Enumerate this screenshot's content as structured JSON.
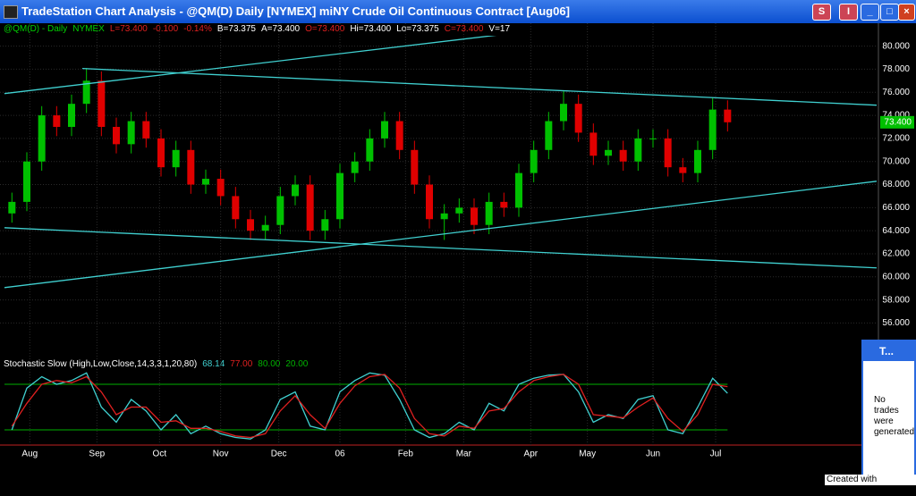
{
  "window": {
    "title": "TradeStation Chart Analysis - @QM(D)  Daily  [NYMEX] miNY Crude Oil Continuous Contract [Aug06]",
    "buttons": [
      "S",
      "I"
    ]
  },
  "side_window": {
    "title": "T...",
    "message": "No trades were generated"
  },
  "footer": "Created with TradeStation",
  "chart_data": [
    {
      "type": "candlestick",
      "header": [
        {
          "text": "@QM(D) - Daily",
          "color": "#00d000"
        },
        {
          "text": "NYMEX",
          "color": "#00d000"
        },
        {
          "text": "L=73.400",
          "color": "#e02020"
        },
        {
          "text": "-0.100",
          "color": "#e02020"
        },
        {
          "text": "-0.14%",
          "color": "#e02020"
        },
        {
          "text": "B=73.375",
          "color": "#ffffff"
        },
        {
          "text": "A=73.400",
          "color": "#ffffff"
        },
        {
          "text": "O=73.400",
          "color": "#e02020"
        },
        {
          "text": "Hi=73.400",
          "color": "#ffffff"
        },
        {
          "text": "Lo=73.375",
          "color": "#ffffff"
        },
        {
          "text": "C=73.400",
          "color": "#e02020"
        },
        {
          "text": "V=17",
          "color": "#ffffff"
        }
      ],
      "open": [
        65.5,
        66.5,
        70,
        74,
        73,
        75,
        77,
        73,
        71.5,
        73.5,
        72,
        69.5,
        71,
        68,
        68.5,
        67,
        65,
        64,
        64.5,
        67,
        68,
        64,
        65,
        69,
        70,
        72,
        73.5,
        71,
        68,
        65,
        65.5,
        66,
        64.5,
        66.5,
        66,
        69,
        71,
        73.5,
        75,
        72.5,
        70.5,
        71,
        70,
        72,
        72,
        69.5,
        69,
        71,
        74.5
      ],
      "high": [
        67.3,
        70.8,
        74.8,
        74.8,
        75.8,
        78.1,
        77.8,
        73.8,
        74.3,
        74.3,
        72.8,
        71.8,
        71.8,
        69.3,
        69.3,
        67.8,
        65.8,
        65.3,
        67.8,
        68.8,
        68.8,
        65.8,
        69.8,
        70.8,
        72.8,
        74.3,
        74.3,
        71.8,
        68.8,
        66.3,
        66.8,
        66.8,
        67.3,
        67.3,
        69.8,
        71.8,
        74.3,
        76.1,
        75.8,
        73.3,
        71.8,
        71.8,
        72.8,
        72.8,
        72.8,
        70.3,
        71.8,
        75.5,
        75.3
      ],
      "low": [
        64.7,
        65.7,
        69.2,
        72.2,
        72.2,
        74.2,
        72.2,
        70.7,
        70.7,
        71.2,
        68.7,
        68.7,
        67.2,
        67.2,
        66.2,
        64.2,
        63.2,
        63.2,
        63.7,
        66.2,
        63.2,
        63.2,
        64.2,
        68.2,
        69.2,
        71.2,
        70.2,
        67.2,
        64.2,
        63.2,
        64.7,
        63.7,
        63.7,
        65.2,
        65.2,
        68.2,
        70.2,
        72.7,
        71.7,
        69.7,
        69.7,
        69.2,
        69.2,
        71.2,
        68.7,
        68.2,
        68.2,
        70.2,
        72.6
      ],
      "close": [
        66.5,
        70,
        74,
        73,
        75,
        77,
        73,
        71.5,
        73.5,
        72,
        69.5,
        71,
        68,
        68.5,
        67,
        65,
        64,
        64.5,
        67,
        68,
        64,
        65,
        69,
        70,
        72,
        73.5,
        71,
        68,
        65,
        65.5,
        66,
        64.5,
        66.5,
        66,
        69,
        71,
        73.5,
        75,
        72.5,
        70.5,
        71,
        70,
        72,
        72,
        69.5,
        69,
        71,
        74.5,
        73.4
      ],
      "up_color": "#00c000",
      "down_color": "#e00000",
      "last": {
        "value": 73.4,
        "label": "73.400"
      },
      "xlim": [
        -0.5,
        58
      ],
      "xticks": [
        {
          "value": 1.2,
          "label": "Aug"
        },
        {
          "value": 5.7,
          "label": "Sep"
        },
        {
          "value": 9.9,
          "label": "Oct"
        },
        {
          "value": 14,
          "label": "Nov"
        },
        {
          "value": 17.9,
          "label": "Dec"
        },
        {
          "value": 22,
          "label": "06"
        },
        {
          "value": 26.4,
          "label": "Feb"
        },
        {
          "value": 30.3,
          "label": "Mar"
        },
        {
          "value": 34.8,
          "label": "Apr"
        },
        {
          "value": 38.6,
          "label": "May"
        },
        {
          "value": 43,
          "label": "Jun"
        },
        {
          "value": 47.2,
          "label": "Jul"
        }
      ],
      "ylim": [
        53.4,
        80.9
      ],
      "yticks": [
        {
          "value": 56,
          "label": "56.000"
        },
        {
          "value": 58,
          "label": "58.000"
        },
        {
          "value": 60,
          "label": "60.000"
        },
        {
          "value": 62,
          "label": "62.000"
        },
        {
          "value": 64,
          "label": "64.000"
        },
        {
          "value": 66,
          "label": "66.000"
        },
        {
          "value": 68,
          "label": "68.000"
        },
        {
          "value": 70,
          "label": "70.000"
        },
        {
          "value": 72,
          "label": "72.000"
        },
        {
          "value": 74,
          "label": "74.000"
        },
        {
          "value": 76,
          "label": "76.000"
        },
        {
          "value": 78,
          "label": "78.000"
        },
        {
          "value": 80,
          "label": "80.000"
        }
      ],
      "grid": true,
      "trendline_color": "#40d0d0",
      "trendlines": [
        {
          "x": [
            -0.5,
            33.87
          ],
          "y": [
            75.89,
            81.16
          ]
        },
        {
          "x": [
            4.72,
            58
          ],
          "y": [
            78.06,
            74.88
          ]
        },
        {
          "x": [
            -0.5,
            58
          ],
          "y": [
            64.26,
            60.78
          ]
        },
        {
          "x": [
            -0.5,
            58
          ],
          "y": [
            59.07,
            68.29
          ]
        }
      ]
    },
    {
      "type": "line",
      "title": "Stochastic Slow (High,Low,Close,14,3,3,1,20,80)",
      "readouts": [
        {
          "text": "68.14",
          "color": "#40d0d0"
        },
        {
          "text": "77.00",
          "color": "#e02020"
        },
        {
          "text": "80.00",
          "color": "#00b000"
        },
        {
          "text": "20.00",
          "color": "#00b000"
        }
      ],
      "ylim": [
        0,
        100
      ],
      "levels": [
        80,
        20
      ],
      "level_color": "#00b000",
      "series": [
        {
          "color": "#40d0d0",
          "values": [
            20,
            75,
            90,
            80,
            85,
            95,
            50,
            30,
            60,
            45,
            20,
            40,
            15,
            25,
            15,
            10,
            8,
            20,
            60,
            70,
            25,
            20,
            70,
            85,
            95,
            92,
            60,
            20,
            10,
            15,
            30,
            20,
            55,
            45,
            80,
            88,
            92,
            93,
            70,
            30,
            40,
            35,
            60,
            65,
            20,
            15,
            50,
            88,
            68.14
          ]
        },
        {
          "color": "#e02020",
          "values": [
            25,
            55,
            80,
            85,
            82,
            90,
            70,
            40,
            50,
            50,
            30,
            32,
            22,
            22,
            18,
            12,
            10,
            15,
            45,
            65,
            40,
            22,
            55,
            78,
            90,
            93,
            75,
            35,
            15,
            12,
            25,
            22,
            45,
            48,
            70,
            85,
            90,
            93,
            80,
            40,
            38,
            36,
            50,
            62,
            35,
            18,
            40,
            80,
            77
          ]
        }
      ]
    }
  ]
}
